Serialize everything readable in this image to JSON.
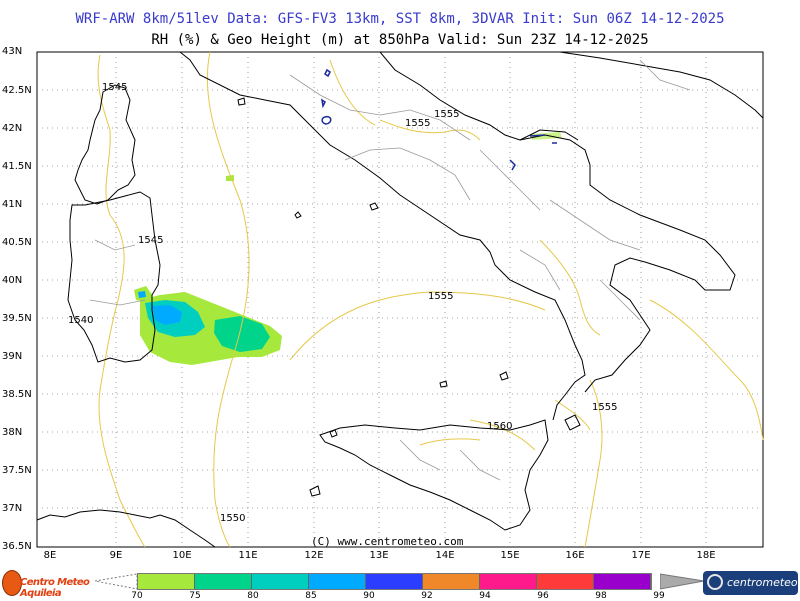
{
  "header": {
    "line1": "WRF-ARW 8km/51lev  Data: GFS-FV3 13km, SST 8km, 3DVAR  Init: Sun 06Z 14-12-2025",
    "line2": "RH (%) & Geo Height (m) at 850hPa  Valid: Sun 23Z 14-12-2025"
  },
  "axes": {
    "y_labels": [
      "43N",
      "42.5N",
      "42N",
      "41.5N",
      "41N",
      "40.5N",
      "40N",
      "39.5N",
      "39N",
      "38.5N",
      "38N",
      "37.5N",
      "37N",
      "36.5N"
    ],
    "x_labels": [
      "8E",
      "9E",
      "10E",
      "11E",
      "12E",
      "13E",
      "14E",
      "15E",
      "16E",
      "17E",
      "18E"
    ]
  },
  "contour_labels": [
    "1545",
    "1555",
    "1555",
    "1545",
    "1540",
    "1555",
    "1560",
    "1555",
    "1550"
  ],
  "copyright": "(C) www.centrometeo.com",
  "legend": {
    "colors": [
      "#a6e83c",
      "#00d48a",
      "#00cfc0",
      "#00aaff",
      "#2b3dff",
      "#f0882a",
      "#ff1a8c",
      "#ff3a3a",
      "#9900cc"
    ],
    "labels": [
      "70",
      "75",
      "80",
      "85",
      "90",
      "92",
      "94",
      "96",
      "98",
      "99"
    ]
  },
  "logos": {
    "left": "Centro Meteo Aquileia",
    "right": "centrometeo"
  },
  "colors": {
    "title_blue": "#3a3acc",
    "contour": "#e6c84a",
    "coast": "#000000",
    "border": "#9a9a9a"
  }
}
